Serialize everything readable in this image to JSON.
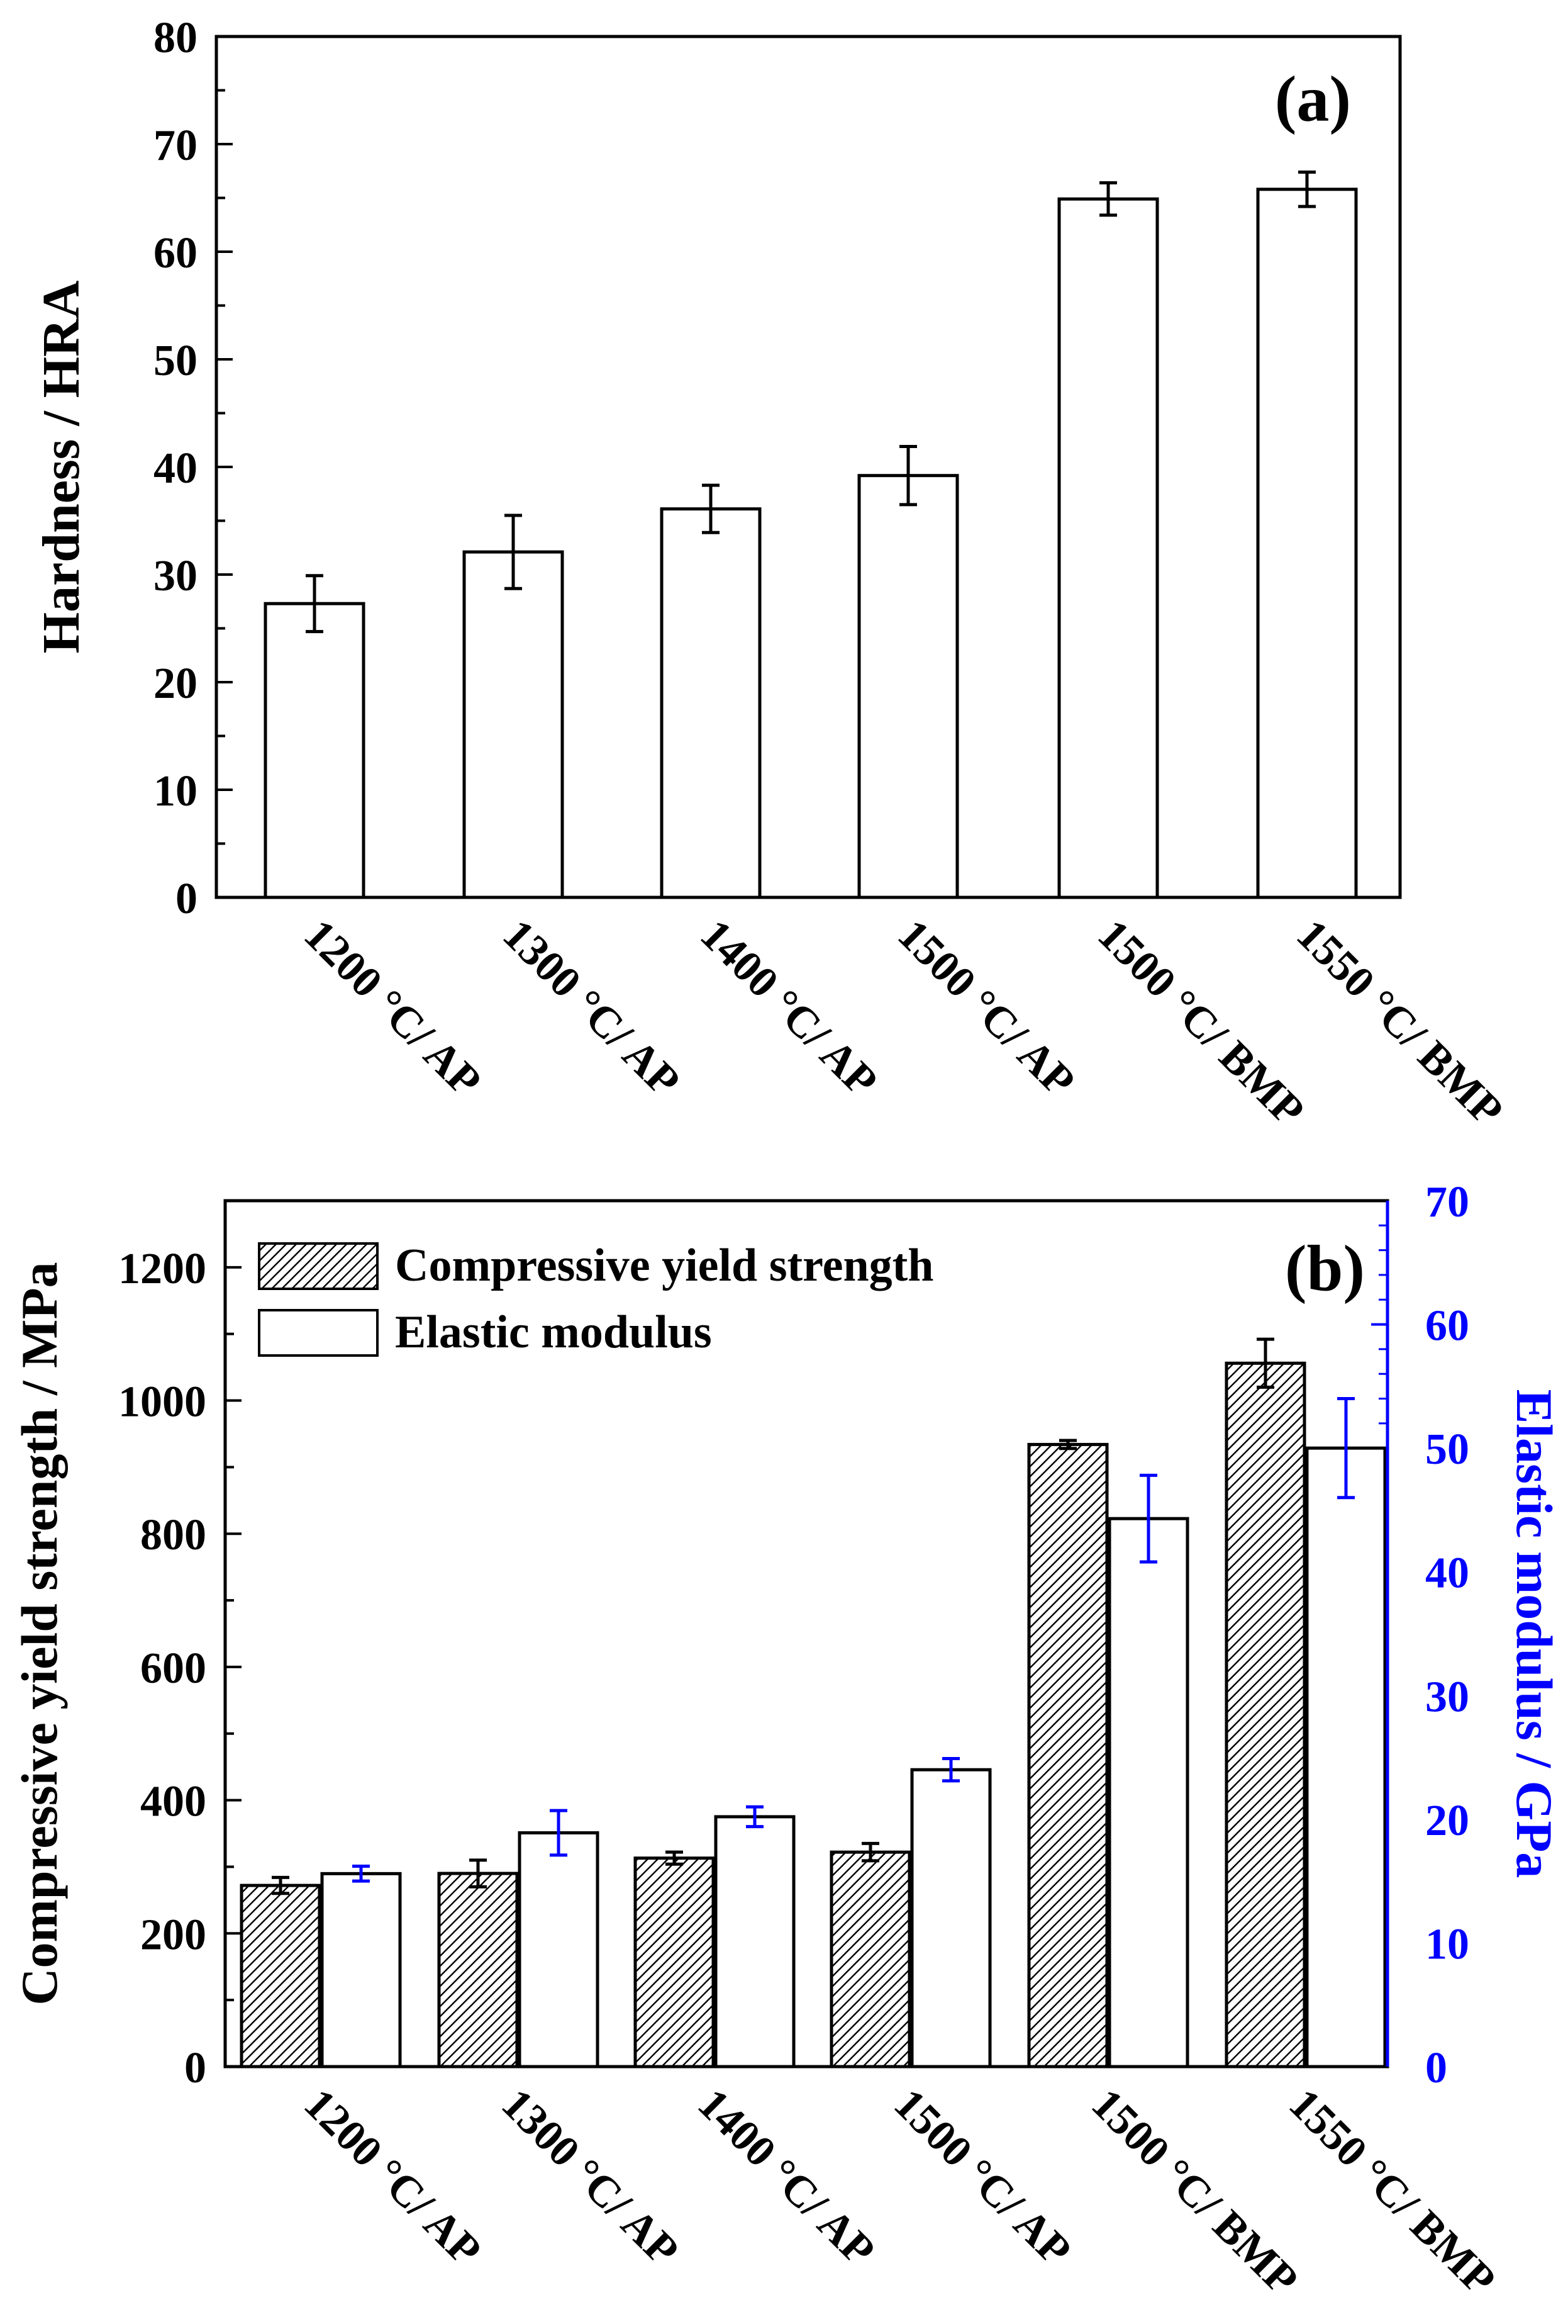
{
  "colors": {
    "axis": "#000000",
    "right_axis": "#0000ff",
    "bar_fill": "#ffffff"
  },
  "chart_data": [
    {
      "type": "bar",
      "panel_label": "(a)",
      "title": "",
      "xlabel": "",
      "ylabel": "Hardness / HRA",
      "ylim": [
        0,
        80
      ],
      "yticks": [
        "0",
        "10",
        "20",
        "30",
        "40",
        "50",
        "60",
        "70",
        "80"
      ],
      "categories": [
        "1200 °C/ AP",
        "1300 °C/ AP",
        "1400 °C/ AP",
        "1500 °C/ AP",
        "1500 °C/ BMP",
        "1550 °C/ BMP"
      ],
      "series": [
        {
          "name": "Hardness",
          "values": [
            27.3,
            32.1,
            36.1,
            39.2,
            64.9,
            65.8
          ],
          "errors": [
            2.6,
            3.4,
            2.2,
            2.7,
            1.5,
            1.6
          ]
        }
      ]
    },
    {
      "type": "bar",
      "panel_label": "(b)",
      "title": "",
      "xlabel": "",
      "ylabel": "Compressive yield strength / MPa",
      "ylim": [
        0,
        1300
      ],
      "yticks": [
        "0",
        "200",
        "400",
        "600",
        "800",
        "1000",
        "1200"
      ],
      "y2label": "Elastic modulus / GPa",
      "y2lim": [
        0,
        70
      ],
      "y2ticks": [
        "0",
        "10",
        "20",
        "30",
        "40",
        "50",
        "60",
        "70"
      ],
      "legend_position": "top-left",
      "categories": [
        "1200 °C/ AP",
        "1300 °C/ AP",
        "1400 °C/ AP",
        "1500 °C/ AP",
        "1500 °C/ BMP",
        "1550 °C/ BMP"
      ],
      "series": [
        {
          "name": "Compressive yield strength",
          "axis": "left",
          "pattern": "hatched",
          "values": [
            272,
            290,
            313,
            322,
            934,
            1056
          ],
          "errors": [
            12,
            20,
            9,
            13,
            6,
            36
          ]
        },
        {
          "name": "Elastic modulus",
          "axis": "right",
          "pattern": "open",
          "values": [
            15.6,
            18.9,
            20.2,
            24.0,
            44.3,
            50.0
          ],
          "errors": [
            0.6,
            1.8,
            0.8,
            0.9,
            3.5,
            4.0
          ]
        }
      ]
    }
  ]
}
